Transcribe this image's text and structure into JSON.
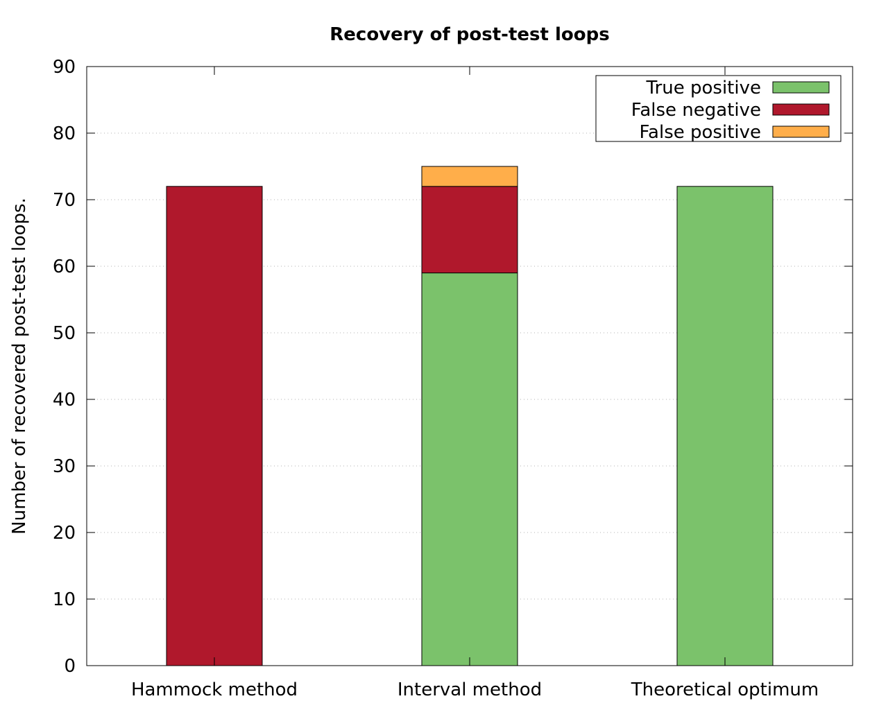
{
  "chart_data": {
    "type": "bar",
    "stacked": true,
    "title": "Recovery of post-test loops",
    "xlabel": "",
    "ylabel": "Number of recovered post-test loops.",
    "categories": [
      "Hammock method",
      "Interval method",
      "Theoretical optimum"
    ],
    "series": [
      {
        "name": "True positive",
        "values": [
          0,
          59,
          72
        ],
        "color": "#7bc26b"
      },
      {
        "name": "False negative",
        "values": [
          72,
          13,
          0
        ],
        "color": "#b0182c"
      },
      {
        "name": "False positive",
        "values": [
          0,
          3,
          0
        ],
        "color": "#ffae4a"
      }
    ],
    "ylim": [
      0,
      90
    ],
    "yticks": [
      "0",
      "10",
      "20",
      "30",
      "40",
      "50",
      "60",
      "70",
      "80",
      "90"
    ],
    "grid": "horizontal dotted",
    "legend_position": "top-right"
  }
}
